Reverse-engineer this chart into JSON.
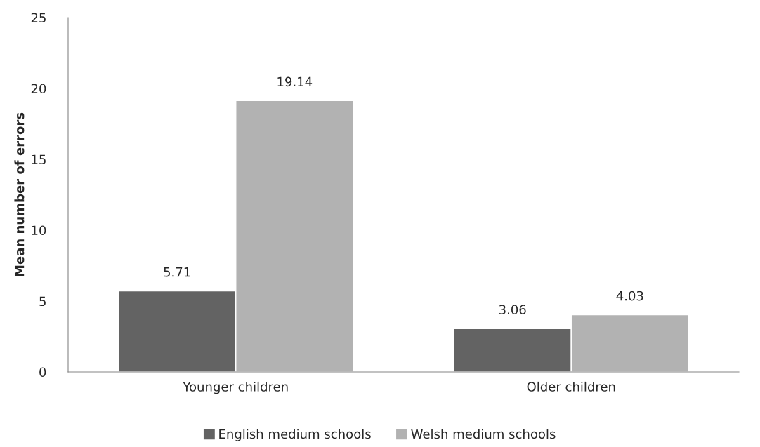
{
  "chart_data": {
    "type": "bar",
    "ylabel": "Mean number of errors",
    "categories": [
      "Younger children",
      "Older children"
    ],
    "series": [
      {
        "name": "English medium schools",
        "color": "#636363",
        "values": [
          5.71,
          3.06
        ]
      },
      {
        "name": "Welsh medium schools",
        "color": "#b2b2b2",
        "values": [
          19.14,
          4.03
        ]
      }
    ],
    "ylim": [
      0,
      25
    ],
    "yticks": [
      0,
      5,
      10,
      15,
      20,
      25
    ],
    "grid": false,
    "legend": "bottom",
    "data_labels": true
  }
}
